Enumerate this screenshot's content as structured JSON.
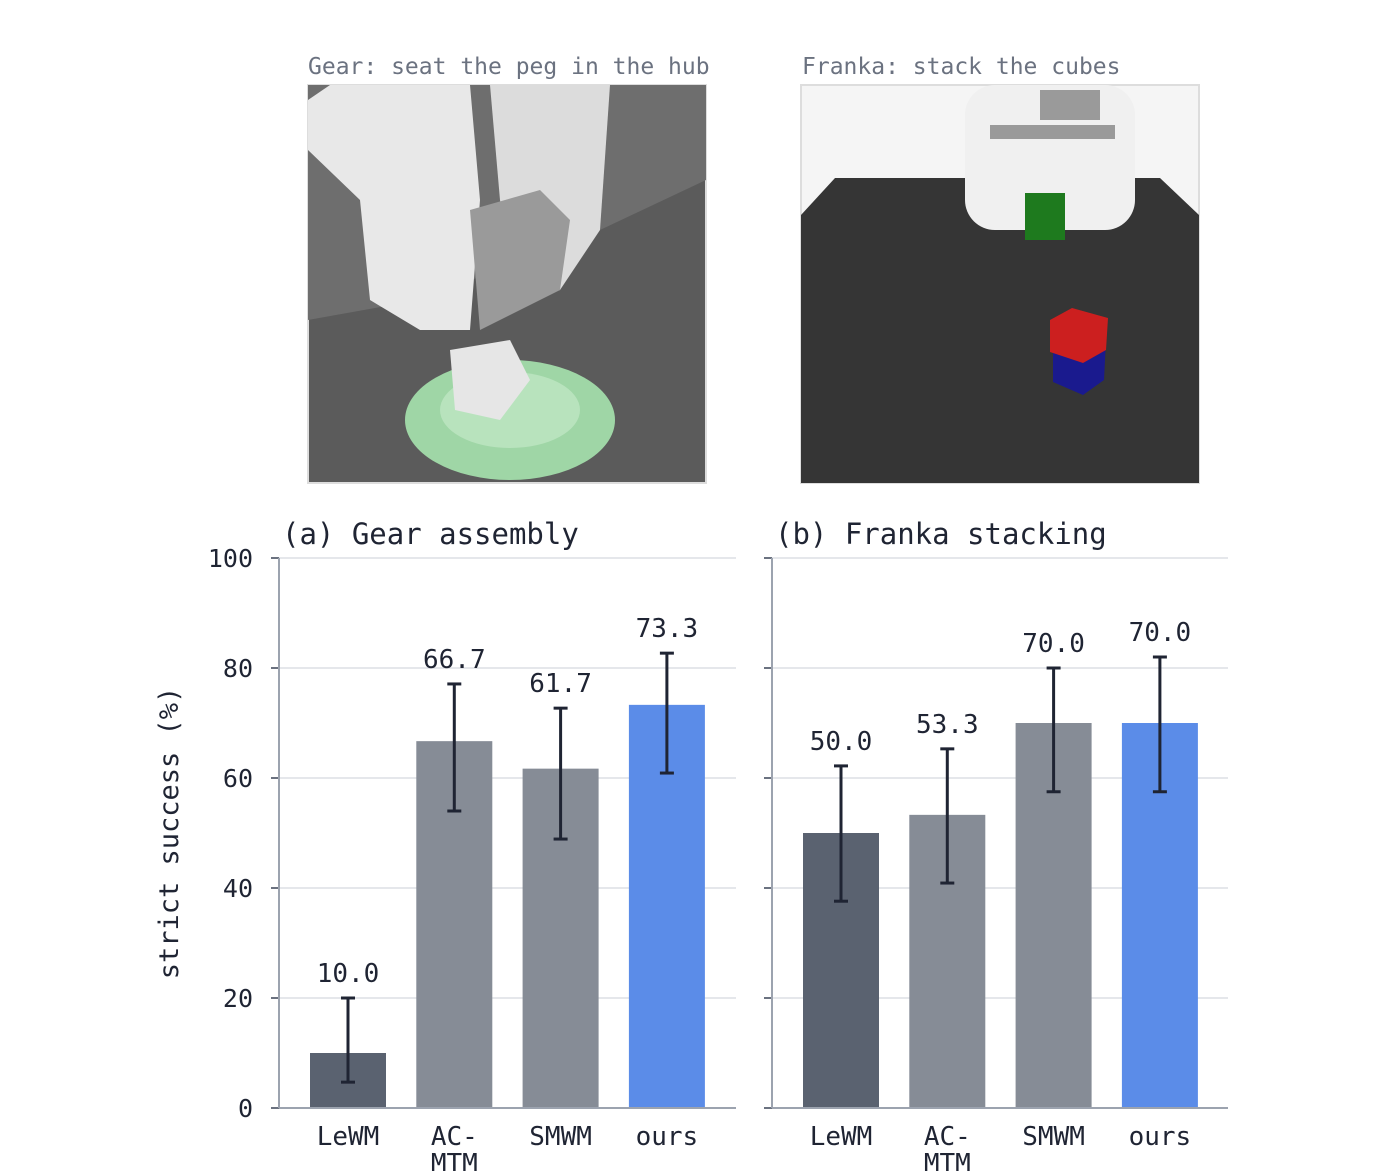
{
  "images": [
    {
      "caption": "Gear: seat the peg in the hub"
    },
    {
      "caption": "Franka: stack the cubes"
    }
  ],
  "chart_data": [
    {
      "type": "bar",
      "title": "(a) Gear assembly",
      "y_label": "strict success (%)",
      "categories": [
        "LeWM",
        "AC-\nMTM",
        "SMWM",
        "ours"
      ],
      "values": [
        10.0,
        66.7,
        61.7,
        73.3
      ],
      "value_labels": [
        "10.0",
        "66.7",
        "61.7",
        "73.3"
      ],
      "ci_low": [
        4.7,
        54.0,
        48.9,
        60.9
      ],
      "ci_high": [
        20.0,
        77.1,
        72.7,
        82.7
      ],
      "colors": [
        "#5a6270",
        "#868c96",
        "#868c96",
        "#5b8ce8"
      ],
      "ylim": [
        0,
        100
      ],
      "yticks": [
        0,
        20,
        40,
        60,
        80,
        100
      ],
      "grid": true,
      "show_ytick_labels": true
    },
    {
      "type": "bar",
      "title": "(b) Franka stacking",
      "categories": [
        "LeWM",
        "AC-\nMTM",
        "SMWM",
        "ours"
      ],
      "values": [
        50.0,
        53.3,
        70.0,
        70.0
      ],
      "value_labels": [
        "50.0",
        "53.3",
        "70.0",
        "70.0"
      ],
      "ci_low": [
        37.6,
        40.9,
        57.5,
        57.5
      ],
      "ci_high": [
        62.2,
        65.3,
        80.0,
        82.0
      ],
      "colors": [
        "#5a6270",
        "#868c96",
        "#868c96",
        "#5b8ce8"
      ],
      "ylim": [
        0,
        100
      ],
      "yticks": [
        0,
        20,
        40,
        60,
        80,
        100
      ],
      "grid": true,
      "show_ytick_labels": false
    }
  ]
}
